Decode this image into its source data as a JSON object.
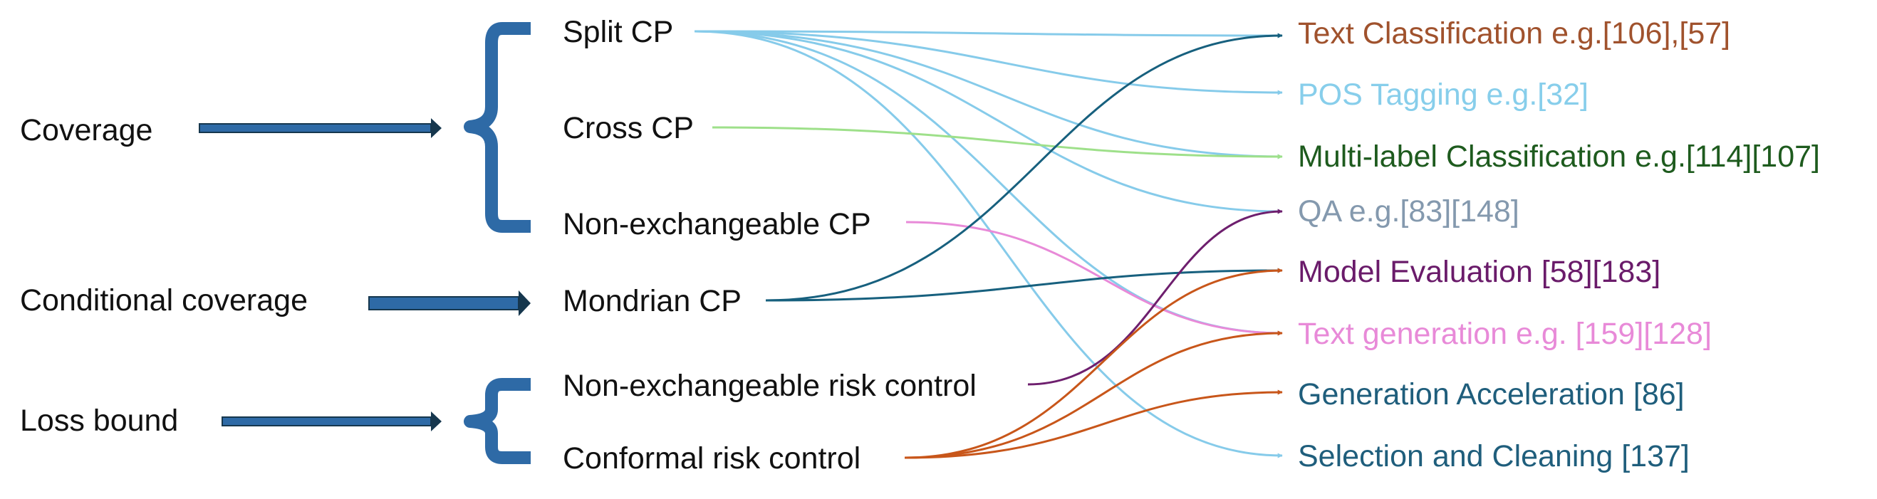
{
  "outcomes": [
    {
      "id": "coverage",
      "label": "Coverage"
    },
    {
      "id": "conditional",
      "label": "Conditional coverage"
    },
    {
      "id": "loss",
      "label": "Loss bound"
    }
  ],
  "methods": [
    {
      "id": "split",
      "label": "Split CP"
    },
    {
      "id": "cross",
      "label": "Cross CP"
    },
    {
      "id": "nonexch",
      "label": "Non-exchangeable CP"
    },
    {
      "id": "mondrian",
      "label": "Mondrian CP"
    },
    {
      "id": "nonexch_risk",
      "label": "Non-exchangeable risk control"
    },
    {
      "id": "crc",
      "label": "Conformal risk control"
    }
  ],
  "applications": [
    {
      "id": "textcls",
      "label": "Text Classification e.g.[106],[57]",
      "color": "#A0522D"
    },
    {
      "id": "pos",
      "label": "POS Tagging e.g.[32]",
      "color": "#87CEEB"
    },
    {
      "id": "multilabel",
      "label": "Multi-label Classification e.g.[114][107]",
      "color": "#1E5B1E"
    },
    {
      "id": "qa",
      "label": "QA e.g.[83][148]",
      "color": "#8499AE"
    },
    {
      "id": "modeleval",
      "label": "Model Evaluation [58][183]",
      "color": "#6A1B6A"
    },
    {
      "id": "textgen",
      "label": "Text generation e.g. [159][128]",
      "color": "#E88AD8"
    },
    {
      "id": "genacc",
      "label": "Generation Acceleration [86]",
      "color": "#1F5E7C"
    },
    {
      "id": "selection",
      "label": "Selection and Cleaning [137]",
      "color": "#1F5E7C"
    }
  ],
  "method_colors": {
    "split": "#86CBEA",
    "cross": "#9EE08A",
    "nonexch": "#E88AD8",
    "mondrian": "#17607E",
    "nonexch_risk": "#6E1F6E",
    "crc": "#C8561A"
  },
  "bracket_color": "#2E6AA6",
  "arrow_color": "#1F5E85",
  "links": [
    {
      "from": "split",
      "to": "textcls"
    },
    {
      "from": "split",
      "to": "pos"
    },
    {
      "from": "split",
      "to": "multilabel"
    },
    {
      "from": "split",
      "to": "qa"
    },
    {
      "from": "split",
      "to": "textgen"
    },
    {
      "from": "split",
      "to": "selection"
    },
    {
      "from": "cross",
      "to": "multilabel"
    },
    {
      "from": "nonexch",
      "to": "textgen"
    },
    {
      "from": "mondrian",
      "to": "textcls"
    },
    {
      "from": "mondrian",
      "to": "modeleval"
    },
    {
      "from": "nonexch_risk",
      "to": "qa"
    },
    {
      "from": "crc",
      "to": "modeleval"
    },
    {
      "from": "crc",
      "to": "textgen"
    },
    {
      "from": "crc",
      "to": "genacc"
    }
  ]
}
